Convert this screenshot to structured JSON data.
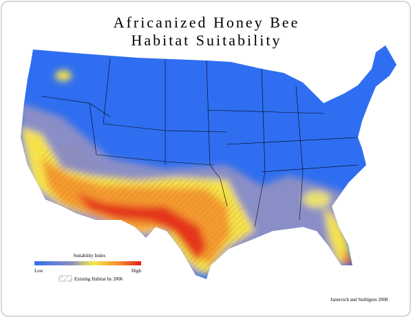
{
  "header": {
    "title_line1": "Africanized Honey Bee",
    "title_line2": "Habitat Suitability"
  },
  "legend": {
    "title": "Suitability Index",
    "low": "Low",
    "high": "High",
    "hatch": "Existing Habitat by 2006"
  },
  "credit": "Jarnevich and Stohlgren 2008"
}
